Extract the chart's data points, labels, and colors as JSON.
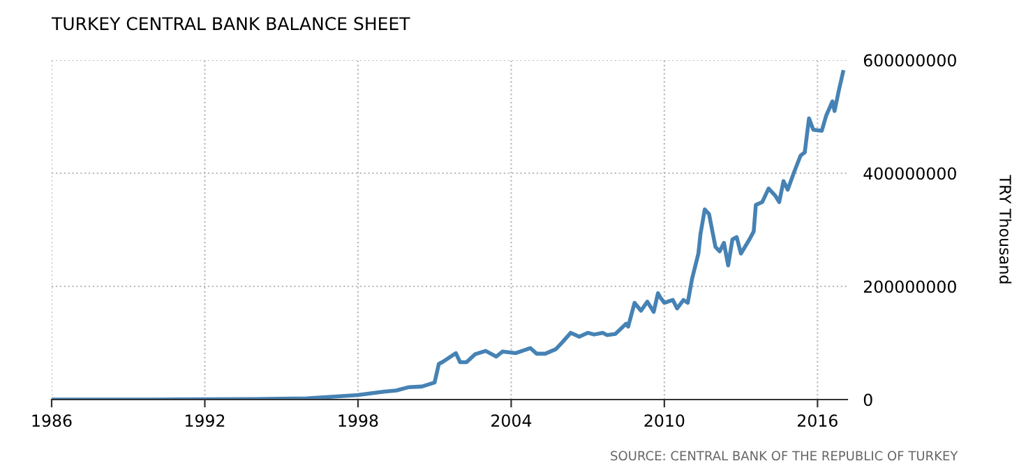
{
  "chart_data": {
    "type": "line",
    "title": "TURKEY CENTRAL BANK BALANCE SHEET",
    "ylabel": "TRY Thousand",
    "annotations": [
      "SOURCE: CENTRAL BANK OF THE REPUBLIC OF TURKEY"
    ],
    "x": [
      "1986-01",
      "1990-01",
      "1994-01",
      "1996-01",
      "1998-01",
      "1999-01",
      "1999-07",
      "2000-01",
      "2000-07",
      "2001-01",
      "2001-03",
      "2001-05",
      "2001-11",
      "2002-01",
      "2002-04",
      "2002-08",
      "2003-01",
      "2003-06",
      "2003-09",
      "2004-03",
      "2004-10",
      "2005-01",
      "2005-05",
      "2005-10",
      "2006-01",
      "2006-05",
      "2006-09",
      "2007-01",
      "2007-04",
      "2007-08",
      "2007-10",
      "2008-02",
      "2008-07",
      "2008-08",
      "2008-11",
      "2009-02",
      "2009-05",
      "2009-08",
      "2009-10",
      "2009-11",
      "2010-01",
      "2010-05",
      "2010-07",
      "2010-10",
      "2010-12",
      "2011-02",
      "2011-05",
      "2011-06",
      "2011-08",
      "2011-10",
      "2012-01",
      "2012-03",
      "2012-05",
      "2012-07",
      "2012-09",
      "2012-11",
      "2013-01",
      "2013-05",
      "2013-07",
      "2013-08",
      "2013-11",
      "2014-02",
      "2014-05",
      "2014-07",
      "2014-09",
      "2014-11",
      "2015-02",
      "2015-05",
      "2015-07",
      "2015-09",
      "2015-11",
      "2016-03",
      "2016-05",
      "2016-08",
      "2016-09",
      "2016-11",
      "2017-01"
    ],
    "series": [
      {
        "color": "#4682b4",
        "values": [
          0,
          0,
          1000000,
          2000000,
          8000000,
          14000000,
          16000000,
          22000000,
          23000000,
          30000000,
          63000000,
          67000000,
          82000000,
          66000000,
          66000000,
          80000000,
          86000000,
          76000000,
          85000000,
          82000000,
          91000000,
          81000000,
          81000000,
          89000000,
          101000000,
          118000000,
          111000000,
          118000000,
          115000000,
          118000000,
          114000000,
          116000000,
          134000000,
          129000000,
          171000000,
          157000000,
          173000000,
          155000000,
          188000000,
          181000000,
          171000000,
          176000000,
          161000000,
          176000000,
          171000000,
          213000000,
          258000000,
          293000000,
          336000000,
          328000000,
          270000000,
          262000000,
          277000000,
          237000000,
          283000000,
          287000000,
          258000000,
          283000000,
          297000000,
          344000000,
          349000000,
          373000000,
          361000000,
          349000000,
          386000000,
          371000000,
          402000000,
          431000000,
          437000000,
          497000000,
          477000000,
          475000000,
          501000000,
          527000000,
          510000000,
          546000000,
          579000000
        ]
      }
    ],
    "xlim": [
      "1986-01",
      "2017-03"
    ],
    "xticks": [
      "1986",
      "1992",
      "1998",
      "2004",
      "2010",
      "2016"
    ],
    "ylim": [
      0,
      600000000
    ],
    "yticks": [
      0,
      200000000,
      400000000,
      600000000
    ],
    "grid": true,
    "legend": false,
    "line_style": "solid",
    "marker": "none"
  }
}
